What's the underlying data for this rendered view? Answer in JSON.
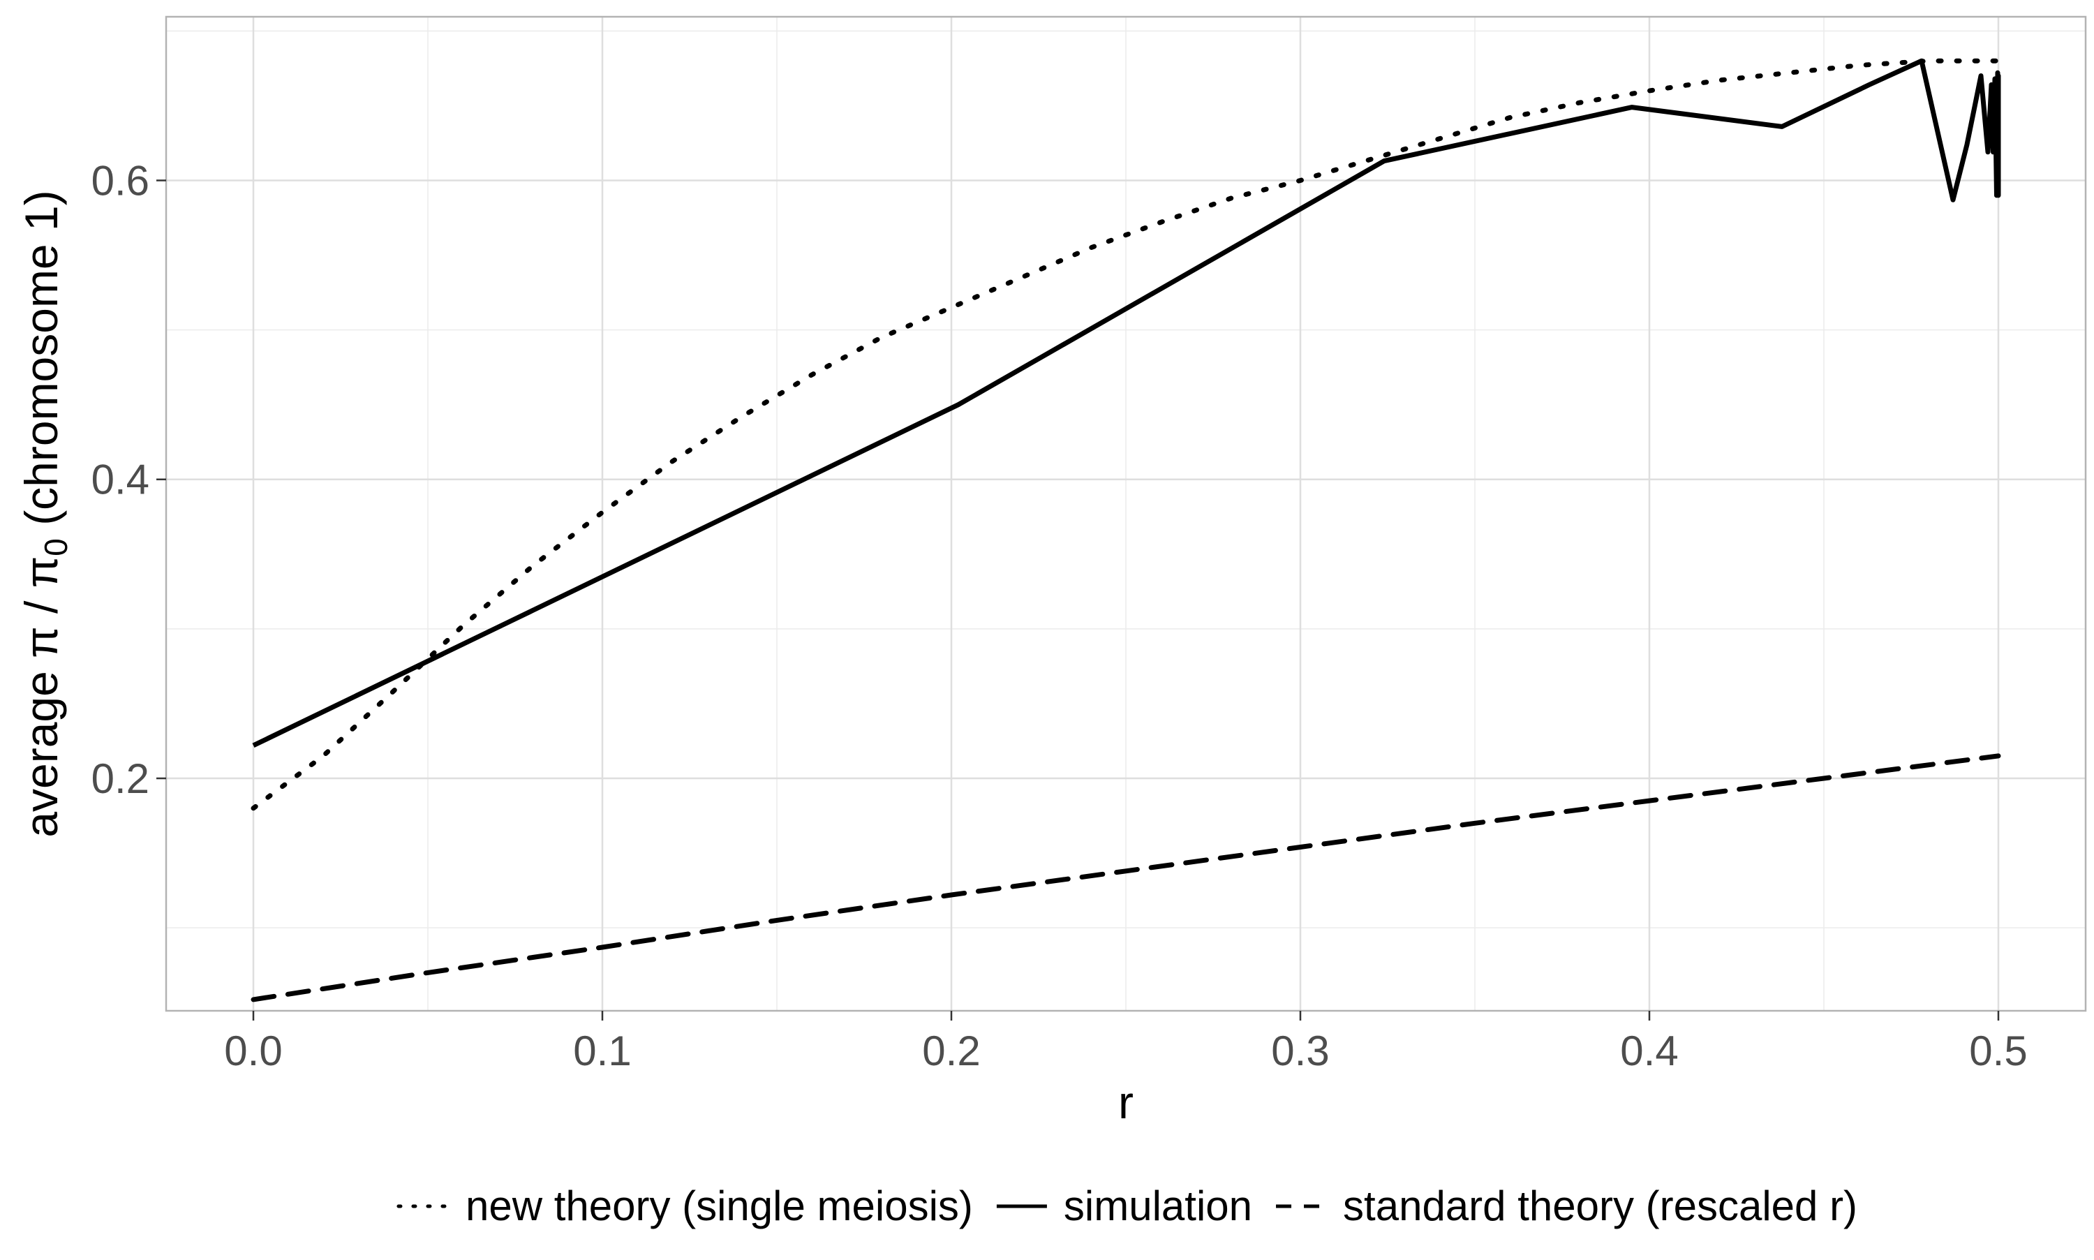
{
  "chart_data": {
    "type": "line",
    "title": "",
    "xlabel": "r",
    "ylabel": "average π / π₀ (chromosome 1)",
    "ylabel_parts": {
      "prefix": "average π / π",
      "subscript": "0",
      "suffix": " (chromosome 1)"
    },
    "xlim": [
      -0.025,
      0.525
    ],
    "ylim": [
      0.0445,
      0.7095
    ],
    "x_ticks": [
      0.0,
      0.1,
      0.2,
      0.3,
      0.4,
      0.5
    ],
    "x_tick_labels": [
      "0.0",
      "0.1",
      "0.2",
      "0.3",
      "0.4",
      "0.5"
    ],
    "x_minor_ticks": [
      0.05,
      0.15,
      0.25,
      0.35,
      0.45
    ],
    "y_ticks": [
      0.2,
      0.4,
      0.6
    ],
    "y_tick_labels": [
      "0.2",
      "0.4",
      "0.6"
    ],
    "y_minor_ticks": [
      0.1,
      0.3,
      0.5,
      0.7
    ],
    "grid": true,
    "legend_position": "bottom",
    "colors": {
      "line": "#000000",
      "grid": "#ebebeb",
      "panel_border": "#b3b3b3",
      "tick_label": "#4d4d4d"
    },
    "series": [
      {
        "name": "new theory (single meiosis)",
        "linestyle": "dotted",
        "x": [
          0.0,
          0.02,
          0.04,
          0.06,
          0.08,
          0.1,
          0.12,
          0.14,
          0.16,
          0.18,
          0.2,
          0.22,
          0.24,
          0.26,
          0.28,
          0.3,
          0.32,
          0.34,
          0.36,
          0.38,
          0.4,
          0.42,
          0.44,
          0.46,
          0.48,
          0.5
        ],
        "values": [
          0.18,
          0.215,
          0.258,
          0.302,
          0.342,
          0.378,
          0.412,
          0.442,
          0.47,
          0.495,
          0.515,
          0.535,
          0.555,
          0.572,
          0.588,
          0.6,
          0.614,
          0.628,
          0.642,
          0.652,
          0.66,
          0.667,
          0.672,
          0.677,
          0.68,
          0.68
        ]
      },
      {
        "name": "simulation",
        "linestyle": "solid",
        "x": [
          0.0,
          0.202,
          0.324,
          0.395,
          0.438,
          0.463,
          0.478,
          0.487,
          0.491,
          0.495,
          0.497,
          0.498,
          0.4985,
          0.499,
          0.4995,
          0.4998,
          0.5,
          0.5,
          0.5
        ],
        "values": [
          0.222,
          0.45,
          0.613,
          0.649,
          0.636,
          0.664,
          0.68,
          0.587,
          0.624,
          0.67,
          0.619,
          0.664,
          0.619,
          0.668,
          0.59,
          0.672,
          0.59,
          0.67,
          0.6
        ]
      },
      {
        "name": "standard theory (rescaled r)",
        "linestyle": "dashed",
        "x": [
          0.0,
          0.05,
          0.1,
          0.15,
          0.2,
          0.25,
          0.3,
          0.35,
          0.4,
          0.45,
          0.5
        ],
        "values": [
          0.052,
          0.07,
          0.087,
          0.105,
          0.122,
          0.138,
          0.154,
          0.17,
          0.185,
          0.2,
          0.215
        ]
      }
    ]
  }
}
